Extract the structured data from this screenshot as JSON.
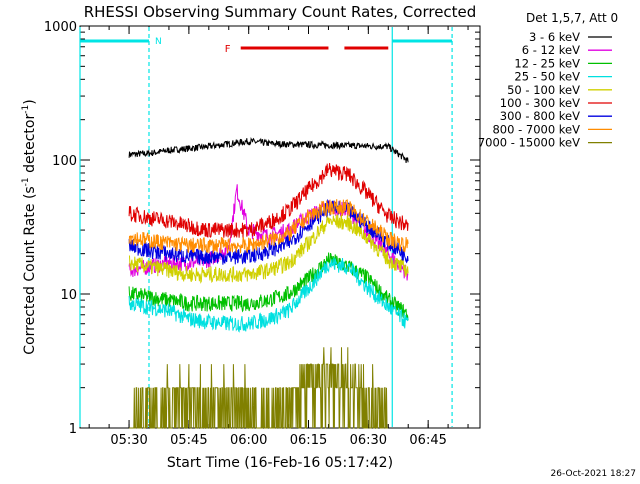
{
  "chart_data": {
    "type": "line",
    "title": "RHESSI Observing Summary Count Rates, Corrected",
    "xlabel": "Start Time (16-Feb-16 05:17:42)",
    "ylabel_main": "Corrected Count Rate (s",
    "ylabel_sup1": "-1",
    "ylabel_mid": " detector",
    "ylabel_sup2": "-1",
    "ylabel_end": ")",
    "y_scale": "log",
    "ylim": [
      1,
      1000
    ],
    "xlim": [
      "05:17:42",
      "06:58:00"
    ],
    "y_ticks": [
      {
        "value": 1,
        "label": "1"
      },
      {
        "value": 10,
        "label": "10"
      },
      {
        "value": 100,
        "label": "100"
      },
      {
        "value": 1000,
        "label": "1000"
      }
    ],
    "x_ticks": [
      {
        "value": "05:30",
        "label": "05:30"
      },
      {
        "value": "05:45",
        "label": "05:45"
      },
      {
        "value": "06:00",
        "label": "06:00"
      },
      {
        "value": "06:15",
        "label": "06:15"
      },
      {
        "value": "06:30",
        "label": "06:30"
      },
      {
        "value": "06:45",
        "label": "06:45"
      }
    ],
    "legend_title": "Det 1,5,7, Att 0",
    "legend_placement": "right",
    "timestamp": "26-Oct-2021 18:27",
    "annotations": {
      "night_marker": "N",
      "flare_marker": "F",
      "night_color": "#00e5e5",
      "flare_color": "#e00000",
      "night_intervals": [
        [
          "05:17:42",
          "05:35:00"
        ],
        [
          "06:36:00",
          "06:51:00"
        ]
      ],
      "night_boundaries": [
        "05:17:42",
        "05:35:00",
        "06:36:00",
        "06:51:00"
      ],
      "flare_intervals": [
        [
          "05:58:00",
          "06:20:00"
        ],
        [
          "06:24:00",
          "06:35:00"
        ]
      ]
    },
    "series": [
      {
        "name": "3 - 6 keV",
        "color": "#000000",
        "x": [
          "05:30",
          "05:35",
          "05:40",
          "05:45",
          "05:50",
          "05:55",
          "06:00",
          "06:05",
          "06:10",
          "06:15",
          "06:20",
          "06:25",
          "06:30",
          "06:35",
          "06:40"
        ],
        "y": [
          110,
          112,
          118,
          122,
          126,
          132,
          138,
          133,
          131,
          130,
          129,
          128,
          127,
          126,
          98
        ]
      },
      {
        "name": "6 - 12 keV",
        "color": "#e000e0",
        "x": [
          "05:30",
          "05:35",
          "05:40",
          "05:45",
          "05:50",
          "05:55",
          "05:57",
          "06:00",
          "06:05",
          "06:10",
          "06:15",
          "06:20",
          "06:25",
          "06:30",
          "06:35",
          "06:40"
        ],
        "y": [
          15,
          16,
          17,
          17,
          18,
          22,
          60,
          30,
          27,
          30,
          38,
          45,
          42,
          28,
          20,
          14
        ]
      },
      {
        "name": "12 - 25 keV",
        "color": "#00c000",
        "x": [
          "05:30",
          "05:35",
          "05:40",
          "05:45",
          "05:50",
          "05:55",
          "06:00",
          "06:05",
          "06:10",
          "06:15",
          "06:20",
          "06:25",
          "06:30",
          "06:35",
          "06:40"
        ],
        "y": [
          10,
          9.5,
          9,
          8.5,
          8.5,
          8.5,
          8.5,
          9,
          10,
          13,
          18,
          16,
          13,
          9,
          7
        ]
      },
      {
        "name": "25 - 50 keV",
        "color": "#00e0e0",
        "x": [
          "05:30",
          "05:35",
          "05:40",
          "05:45",
          "05:50",
          "05:55",
          "06:00",
          "06:05",
          "06:10",
          "06:15",
          "06:20",
          "06:25",
          "06:30",
          "06:35",
          "06:40"
        ],
        "y": [
          8.5,
          8,
          7.5,
          6.5,
          6.2,
          6,
          6,
          6.5,
          7.5,
          11,
          17,
          16,
          11,
          8,
          6
        ]
      },
      {
        "name": "50 - 100 keV",
        "color": "#d0d000",
        "x": [
          "05:30",
          "05:35",
          "05:40",
          "05:45",
          "05:50",
          "05:55",
          "06:00",
          "06:05",
          "06:10",
          "06:15",
          "06:20",
          "06:25",
          "06:30",
          "06:35",
          "06:40"
        ],
        "y": [
          17,
          16,
          15,
          14,
          14,
          14,
          14,
          15,
          17,
          24,
          35,
          34,
          26,
          18,
          15
        ]
      },
      {
        "name": "100 - 300 keV",
        "color": "#e00000",
        "x": [
          "05:30",
          "05:35",
          "05:40",
          "05:45",
          "05:50",
          "05:55",
          "06:00",
          "06:05",
          "06:10",
          "06:15",
          "06:20",
          "06:25",
          "06:30",
          "06:35",
          "06:40"
        ],
        "y": [
          40,
          37,
          35,
          32,
          30,
          30,
          30,
          34,
          42,
          60,
          85,
          78,
          55,
          38,
          32
        ]
      },
      {
        "name": "300 - 800 keV",
        "color": "#0000e0",
        "x": [
          "05:30",
          "05:35",
          "05:40",
          "05:45",
          "05:50",
          "05:55",
          "06:00",
          "06:05",
          "06:10",
          "06:15",
          "06:20",
          "06:25",
          "06:30",
          "06:35",
          "06:40"
        ],
        "y": [
          23,
          21,
          20,
          19,
          19,
          19,
          19,
          21,
          24,
          33,
          44,
          42,
          32,
          24,
          19
        ]
      },
      {
        "name": "800 - 7000 keV",
        "color": "#ff8c00",
        "x": [
          "05:30",
          "05:35",
          "05:40",
          "05:45",
          "05:50",
          "05:55",
          "06:00",
          "06:05",
          "06:10",
          "06:15",
          "06:20",
          "06:25",
          "06:30",
          "06:35",
          "06:40"
        ],
        "y": [
          27,
          25,
          24,
          23,
          23,
          23,
          23,
          25,
          28,
          38,
          45,
          44,
          34,
          26,
          23
        ]
      },
      {
        "name": "7000 - 15000 keV",
        "color": "#808000",
        "x": [
          "05:30",
          "05:35",
          "05:58",
          "06:05",
          "06:10",
          "06:13",
          "06:15",
          "06:18",
          "06:20",
          "06:25",
          "06:30",
          "06:35"
        ],
        "y": [
          1,
          1.6,
          1.8,
          1,
          1.5,
          2.4,
          2.8,
          3.2,
          3.4,
          2.8,
          2,
          1
        ]
      }
    ]
  }
}
